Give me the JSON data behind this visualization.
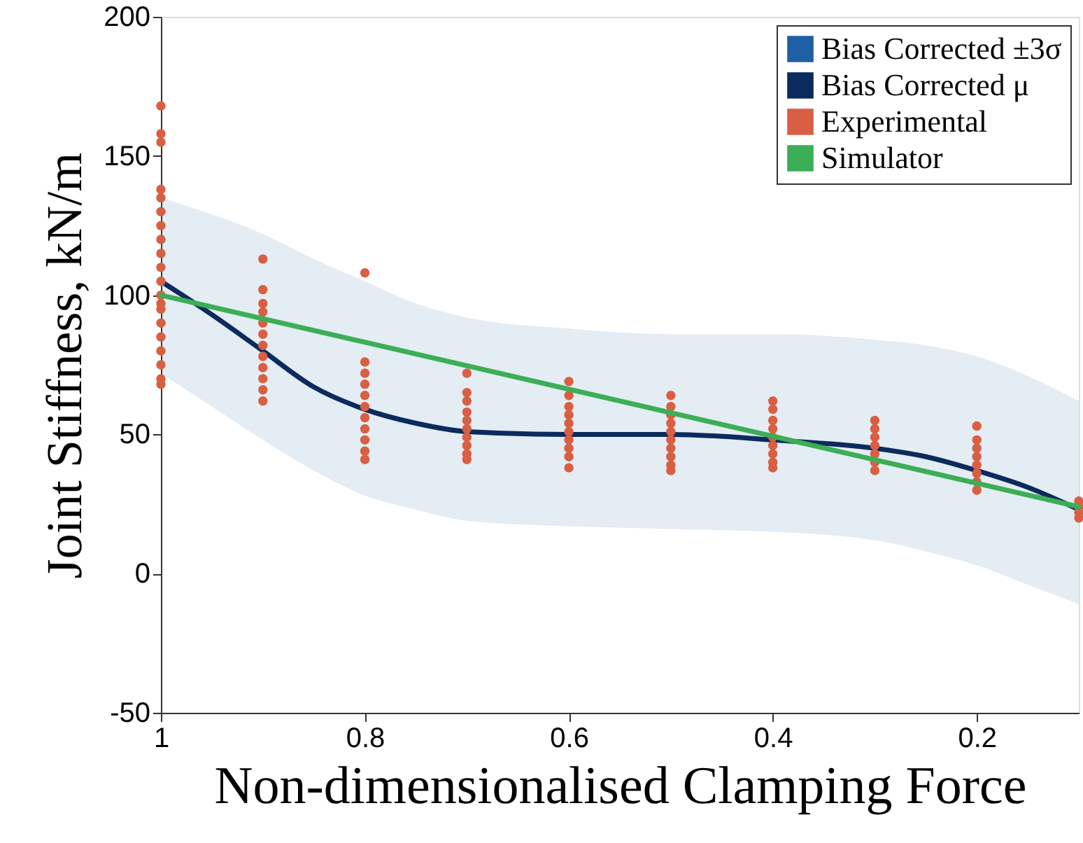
{
  "chart_data": {
    "type": "line",
    "xlabel": "Non-dimensionalised Clamping Force",
    "ylabel": "Joint Stiffness, kN/m",
    "xlim": [
      1,
      0.1
    ],
    "xticks": [
      1,
      0.8,
      0.6,
      0.4,
      0.2
    ],
    "ylim": [
      -50,
      200
    ],
    "yticks": [
      -50,
      0,
      50,
      100,
      150,
      200
    ],
    "grid": false,
    "legend": "top right",
    "series": [
      {
        "name": "Bias Corrected ±3σ",
        "type": "area",
        "color": "#1f5fa6"
      },
      {
        "name": "Bias Corrected μ",
        "type": "line",
        "color": "#0b2a5e",
        "x": [
          1,
          0.95,
          0.9,
          0.85,
          0.8,
          0.75,
          0.7,
          0.6,
          0.5,
          0.4,
          0.3,
          0.25,
          0.2,
          0.15,
          0.1
        ],
        "values": [
          105,
          93,
          80,
          67,
          59,
          54,
          51,
          50,
          50,
          48,
          45,
          42,
          37,
          31,
          23
        ],
        "lower": [
          72,
          60,
          48,
          37,
          28,
          23,
          19,
          17,
          16,
          15,
          12,
          8,
          3,
          -4,
          -11
        ],
        "upper": [
          135,
          129,
          122,
          113,
          105,
          97,
          92,
          88,
          86,
          86,
          84,
          82,
          78,
          71,
          62
        ]
      },
      {
        "name": "Experimental",
        "type": "scatter",
        "color": "#d95f43",
        "x": [
          1,
          1,
          1,
          1,
          1,
          1,
          1,
          1,
          1,
          1,
          1,
          1,
          1,
          1,
          1,
          1,
          1,
          1,
          1,
          1,
          0.9,
          0.9,
          0.9,
          0.9,
          0.9,
          0.9,
          0.9,
          0.9,
          0.9,
          0.9,
          0.9,
          0.9,
          0.8,
          0.8,
          0.8,
          0.8,
          0.8,
          0.8,
          0.8,
          0.8,
          0.8,
          0.8,
          0.8,
          0.7,
          0.7,
          0.7,
          0.7,
          0.7,
          0.7,
          0.7,
          0.7,
          0.7,
          0.7,
          0.6,
          0.6,
          0.6,
          0.6,
          0.6,
          0.6,
          0.6,
          0.6,
          0.6,
          0.6,
          0.5,
          0.5,
          0.5,
          0.5,
          0.5,
          0.5,
          0.5,
          0.5,
          0.5,
          0.5,
          0.4,
          0.4,
          0.4,
          0.4,
          0.4,
          0.4,
          0.4,
          0.4,
          0.4,
          0.3,
          0.3,
          0.3,
          0.3,
          0.3,
          0.3,
          0.3,
          0.2,
          0.2,
          0.2,
          0.2,
          0.2,
          0.2,
          0.2,
          0.2,
          0.1,
          0.1,
          0.1,
          0.1
        ],
        "values": [
          168,
          158,
          155,
          138,
          135,
          130,
          125,
          120,
          115,
          110,
          105,
          100,
          97,
          95,
          90,
          85,
          80,
          75,
          70,
          68,
          113,
          102,
          97,
          94,
          90,
          86,
          82,
          78,
          74,
          70,
          66,
          62,
          108,
          76,
          72,
          68,
          64,
          60,
          56,
          52,
          48,
          44,
          41,
          72,
          65,
          62,
          58,
          55,
          52,
          49,
          46,
          43,
          41,
          69,
          64,
          60,
          57,
          54,
          51,
          48,
          45,
          42,
          38,
          64,
          60,
          57,
          54,
          51,
          48,
          45,
          42,
          39,
          37,
          62,
          59,
          55,
          52,
          49,
          46,
          43,
          40,
          38,
          55,
          52,
          49,
          46,
          43,
          40,
          37,
          53,
          48,
          45,
          42,
          39,
          36,
          33,
          30,
          26,
          24,
          22,
          20
        ]
      },
      {
        "name": "Simulator",
        "type": "line",
        "color": "#3cae55",
        "x": [
          1,
          0.1
        ],
        "values": [
          100,
          24
        ]
      }
    ]
  }
}
